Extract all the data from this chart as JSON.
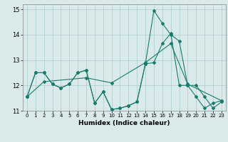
{
  "xlabel": "Humidex (Indice chaleur)",
  "background_color": "#daeaea",
  "grid_color": "#aacccc",
  "line_color": "#1a7a6e",
  "xlim": [
    -0.5,
    23.5
  ],
  "ylim": [
    11,
    15.2
  ],
  "yticks": [
    11,
    12,
    13,
    14,
    15
  ],
  "xticks": [
    0,
    1,
    2,
    3,
    4,
    5,
    6,
    7,
    8,
    9,
    10,
    11,
    12,
    13,
    14,
    15,
    16,
    17,
    18,
    19,
    20,
    21,
    22,
    23
  ],
  "line1_x": [
    0,
    1,
    2,
    3,
    4,
    5,
    6,
    7,
    8,
    9,
    10,
    11,
    12,
    13,
    14,
    15,
    16,
    17,
    18,
    19,
    20,
    21,
    22,
    23
  ],
  "line1_y": [
    11.55,
    12.5,
    12.5,
    12.05,
    11.9,
    12.05,
    12.5,
    12.6,
    11.3,
    11.75,
    11.05,
    11.1,
    11.2,
    11.35,
    12.85,
    14.95,
    14.45,
    14.0,
    13.75,
    12.0,
    12.0,
    11.55,
    11.1,
    11.35
  ],
  "line2_x": [
    0,
    1,
    2,
    3,
    4,
    5,
    6,
    7,
    8,
    9,
    10,
    11,
    12,
    13,
    14,
    15,
    16,
    17,
    18,
    19,
    20,
    21,
    22,
    23
  ],
  "line2_y": [
    11.55,
    12.5,
    12.5,
    12.05,
    11.9,
    12.05,
    12.5,
    12.6,
    11.3,
    11.75,
    11.05,
    11.1,
    11.2,
    11.35,
    12.85,
    12.9,
    13.65,
    14.05,
    12.0,
    12.0,
    11.55,
    11.1,
    11.3,
    11.4
  ],
  "line3_x": [
    0,
    2,
    7,
    10,
    14,
    17,
    19,
    23
  ],
  "line3_y": [
    11.55,
    12.15,
    12.3,
    12.1,
    12.9,
    13.65,
    12.05,
    11.4
  ]
}
